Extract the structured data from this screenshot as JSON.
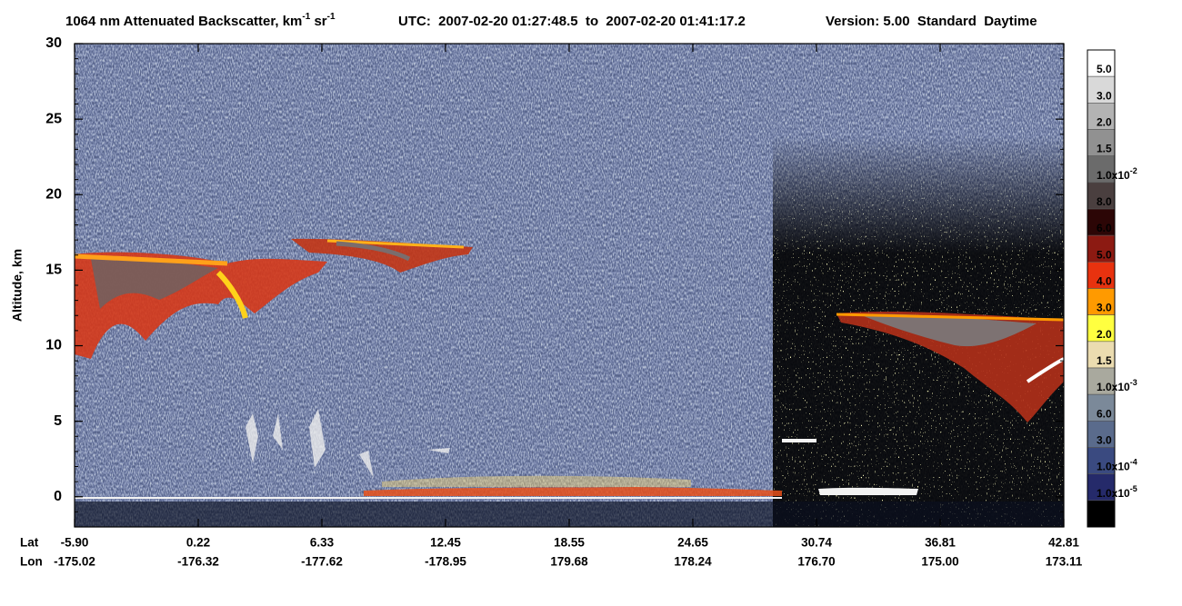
{
  "chart_data": {
    "type": "curtain",
    "title_parts": [
      {
        "text": "1064 nm Attenuated Backscatter, km"
      },
      {
        "sup": "-1"
      },
      {
        "text": " sr"
      },
      {
        "sup": "-1"
      }
    ],
    "time_range": "UTC:  2007-02-20 01:27:48.5  to  2007-02-20 01:41:17.2",
    "version": "Version: 5.00  Standard  Daytime",
    "y_label": "Altitude, km",
    "ylim": [
      -2,
      30
    ],
    "yticks": [
      0,
      5,
      10,
      15,
      20,
      25,
      30
    ],
    "x_row_labels": [
      "Lat",
      "Lon"
    ],
    "lat": [
      "-5.90",
      "0.22",
      "6.33",
      "12.45",
      "18.55",
      "24.65",
      "30.74",
      "36.81",
      "42.81"
    ],
    "lon": [
      "-175.02",
      "-176.32",
      "-177.62",
      "-178.95",
      "179.68",
      "178.24",
      "176.70",
      "175.00",
      "173.11"
    ],
    "colorbar": {
      "colors": [
        "#ffffff",
        "#d9d9d9",
        "#b3b3b3",
        "#919191",
        "#6b6b6b",
        "#4a3f3f",
        "#2c0606",
        "#8c1a12",
        "#e8320f",
        "#ff9a00",
        "#ffff40",
        "#ebdcb0",
        "#a9a99e",
        "#7b8999",
        "#5a6b8c",
        "#3a4a80",
        "#252a6a",
        "#000000"
      ],
      "labels": [
        {
          "text": "5.0"
        },
        {
          "text": "3.0"
        },
        {
          "text": "2.0"
        },
        {
          "text": "1.5"
        },
        {
          "text": "1.0x10",
          "sup": "-2"
        },
        {
          "text": "8.0"
        },
        {
          "text": "6.0"
        },
        {
          "text": "5.0"
        },
        {
          "text": "4.0"
        },
        {
          "text": "3.0"
        },
        {
          "text": "2.0"
        },
        {
          "text": "1.5"
        },
        {
          "text": "1.0x10",
          "sup": "-3"
        },
        {
          "text": "6.0"
        },
        {
          "text": "3.0"
        },
        {
          "text": "1.0x10",
          "sup": "-4"
        },
        {
          "text": "1.0x10",
          "sup": "-5"
        }
      ]
    }
  }
}
